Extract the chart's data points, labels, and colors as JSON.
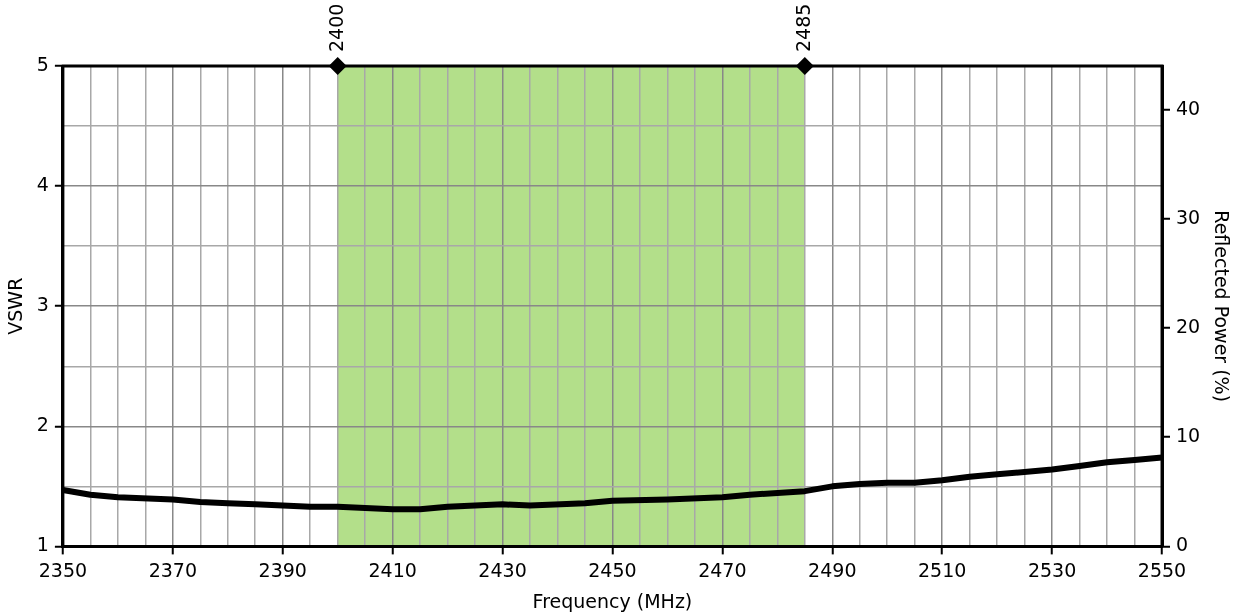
{
  "chart_data": {
    "type": "line",
    "xlabel": "Frequency (MHz)",
    "ylabel": "VSWR",
    "y2label": "Reflected Power (%)",
    "x": [
      2350,
      2355,
      2360,
      2370,
      2375,
      2380,
      2385,
      2390,
      2395,
      2400,
      2410,
      2415,
      2420,
      2430,
      2435,
      2445,
      2450,
      2460,
      2470,
      2475,
      2485,
      2490,
      2495,
      2500,
      2505,
      2510,
      2515,
      2520,
      2530,
      2535,
      2540,
      2545,
      2550
    ],
    "series": [
      {
        "color": "#000000",
        "values": [
          1.47,
          1.43,
          1.41,
          1.39,
          1.37,
          1.36,
          1.35,
          1.34,
          1.33,
          1.33,
          1.31,
          1.31,
          1.33,
          1.35,
          1.34,
          1.36,
          1.38,
          1.39,
          1.41,
          1.43,
          1.46,
          1.5,
          1.52,
          1.53,
          1.53,
          1.55,
          1.58,
          1.6,
          1.64,
          1.67,
          1.7,
          1.72,
          1.74
        ]
      }
    ],
    "xlim": [
      2350,
      2550
    ],
    "xticks": [
      2350,
      {
        "value": 2355,
        "label": null
      },
      {
        "value": 2360,
        "label": null
      },
      {
        "value": 2365,
        "label": null
      },
      2370,
      {
        "value": 2375,
        "label": null
      },
      {
        "value": 2380,
        "label": null
      },
      {
        "value": 2385,
        "label": null
      },
      2390,
      {
        "value": 2395,
        "label": null
      },
      {
        "value": 2400,
        "label": null
      },
      {
        "value": 2405,
        "label": null
      },
      2410,
      {
        "value": 2415,
        "label": null
      },
      {
        "value": 2420,
        "label": null
      },
      {
        "value": 2425,
        "label": null
      },
      2430,
      {
        "value": 2435,
        "label": null
      },
      {
        "value": 2440,
        "label": null
      },
      {
        "value": 2445,
        "label": null
      },
      2450,
      {
        "value": 2455,
        "label": null
      },
      {
        "value": 2460,
        "label": null
      },
      {
        "value": 2465,
        "label": null
      },
      2470,
      {
        "value": 2475,
        "label": null
      },
      {
        "value": 2480,
        "label": null
      },
      {
        "value": 2485,
        "label": null
      },
      2490,
      {
        "value": 2495,
        "label": null
      },
      {
        "value": 2500,
        "label": null
      },
      {
        "value": 2505,
        "label": null
      },
      2510,
      {
        "value": 2515,
        "label": null
      },
      {
        "value": 2520,
        "label": null
      },
      {
        "value": 2525,
        "label": null
      },
      2530,
      {
        "value": 2535,
        "label": null
      },
      {
        "value": 2540,
        "label": null
      },
      {
        "value": 2545,
        "label": null
      },
      2550
    ],
    "ylim": [
      1,
      5
    ],
    "yticks": [
      1,
      {
        "value": 1.5,
        "label": null
      },
      2,
      {
        "value": 2.5,
        "label": null
      },
      3,
      {
        "value": 3.5,
        "label": null
      },
      4,
      {
        "value": 4.5,
        "label": null
      },
      5
    ],
    "y2lim": [
      0,
      44
    ],
    "y2ticks": [
      0,
      10,
      20,
      30,
      40
    ],
    "bands": [
      {
        "axis": "x",
        "from": 2400,
        "to": 2485,
        "color": "#b3df8a"
      }
    ],
    "annotations": [
      {
        "text": "2400",
        "x": 2400,
        "y": 5
      },
      {
        "text": "2485",
        "x": 2485,
        "y": 5
      }
    ],
    "grid": true,
    "legend": false,
    "marker": "none",
    "line_style": "solid"
  }
}
